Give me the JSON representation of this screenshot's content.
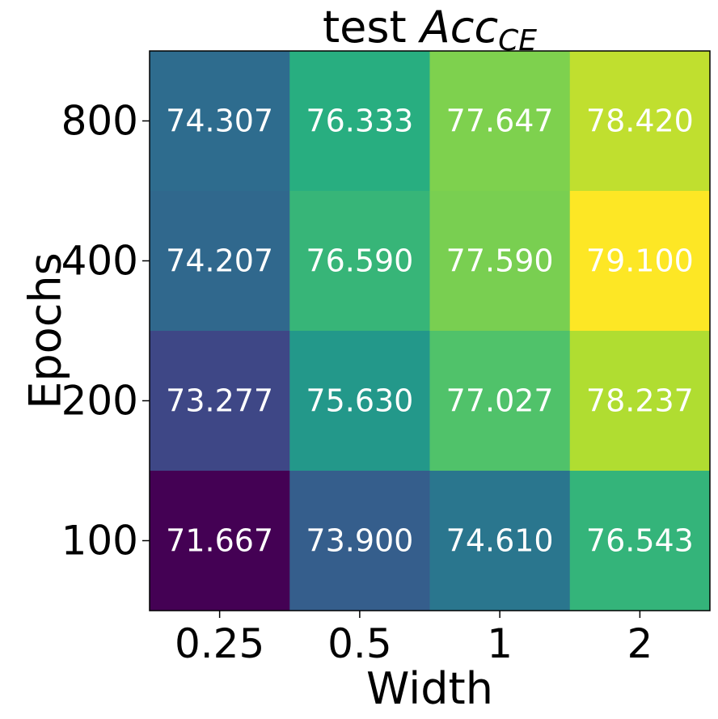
{
  "chart_data": {
    "type": "heatmap",
    "title": {
      "prefix": "test ",
      "main": "Acc",
      "subscript": "CE"
    },
    "xlabel": "Width",
    "ylabel": "Epochs",
    "x_categories": [
      "0.25",
      "0.5",
      "1",
      "2"
    ],
    "y_categories": [
      "800",
      "400",
      "200",
      "100"
    ],
    "values": [
      [
        74.307,
        76.333,
        77.647,
        78.42
      ],
      [
        74.207,
        76.59,
        77.59,
        79.1
      ],
      [
        73.277,
        75.63,
        77.027,
        78.237
      ],
      [
        71.667,
        73.9,
        74.61,
        76.543
      ]
    ],
    "cell_labels": [
      [
        "74.307",
        "76.333",
        "77.647",
        "78.420"
      ],
      [
        "74.207",
        "76.590",
        "77.590",
        "79.100"
      ],
      [
        "73.277",
        "75.630",
        "77.027",
        "78.237"
      ],
      [
        "71.667",
        "73.900",
        "74.610",
        "76.543"
      ]
    ],
    "colormap": "viridis",
    "value_range": [
      71.667,
      79.1
    ],
    "grid": false,
    "legend": "none"
  }
}
